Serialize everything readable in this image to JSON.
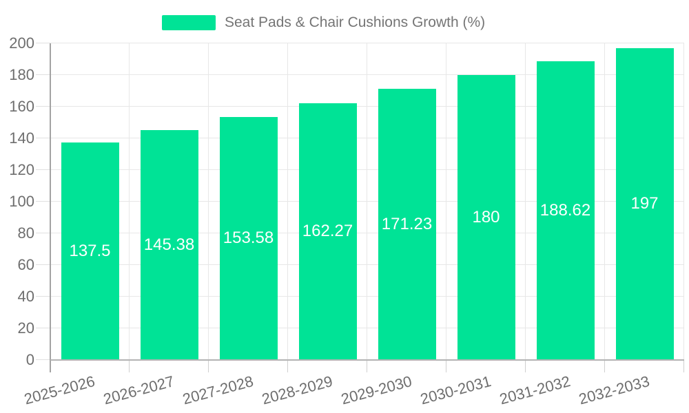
{
  "legend": {
    "label": "Seat Pads & Chair Cushions Growth (%)"
  },
  "chart_data": {
    "type": "bar",
    "title": "",
    "series_name": "Seat Pads & Chair Cushions Growth (%)",
    "categories": [
      "2025-2026",
      "2026-2027",
      "2027-2028",
      "2028-2029",
      "2029-2030",
      "2030-2031",
      "2031-2032",
      "2032-2033"
    ],
    "values": [
      137.5,
      145.38,
      153.58,
      162.27,
      171.23,
      180,
      188.62,
      197
    ],
    "value_labels": [
      "137.5",
      "145.38",
      "153.58",
      "162.27",
      "171.23",
      "180",
      "188.62",
      "197"
    ],
    "ylim": [
      0,
      200
    ],
    "yticks": [
      0,
      20,
      40,
      60,
      80,
      100,
      120,
      140,
      160,
      180,
      200
    ],
    "xlabel": "",
    "ylabel": "",
    "grid": true,
    "legend_position": "top",
    "colors": {
      "bar": "#00E396",
      "grid": "#e7e7e7",
      "y_axis_line": "#a3a3a3",
      "x_axis_line": "#b3b3b3",
      "x_tick": "#cfcfcf",
      "y_tick": "#e0e0e0",
      "axis_label": "#6e6e6e",
      "legend_text": "#757575",
      "data_label": "#ffffff",
      "background": "#ffffff"
    }
  }
}
